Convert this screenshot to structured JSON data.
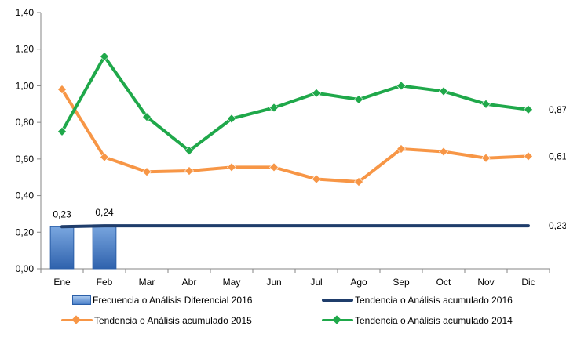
{
  "chart_data": {
    "type": "line",
    "categories": [
      "Ene",
      "Feb",
      "Mar",
      "Abr",
      "May",
      "Jun",
      "Jul",
      "Ago",
      "Sep",
      "Oct",
      "Nov",
      "Dic"
    ],
    "ylim": [
      0,
      1.4
    ],
    "yticks": [
      "0,00",
      "0,20",
      "0,40",
      "0,60",
      "0,80",
      "1,00",
      "1,20",
      "1,40"
    ],
    "title": "",
    "xlabel": "",
    "ylabel": "",
    "grid": false,
    "legend_position": "bottom",
    "series": [
      {
        "name": "Frecuencia o Análisis Diferencial 2016",
        "kind": "bar",
        "color": "#4a7fc8",
        "values": [
          0.23,
          0.24,
          null,
          null,
          null,
          null,
          null,
          null,
          null,
          null,
          null,
          null
        ],
        "labels": [
          "0,23",
          "0,24"
        ]
      },
      {
        "name": "Tendencia o Análisis acumulado 2016",
        "kind": "line",
        "color": "#1f3d6b",
        "marker": "none",
        "values": [
          0.23,
          0.235,
          0.235,
          0.235,
          0.235,
          0.235,
          0.235,
          0.235,
          0.235,
          0.235,
          0.235,
          0.235
        ],
        "end_label": "0,23"
      },
      {
        "name": "Tendencia o Análisis acumulado 2015",
        "kind": "line",
        "color": "#f79646",
        "marker": "diamond",
        "values": [
          0.98,
          0.61,
          0.53,
          0.535,
          0.555,
          0.555,
          0.49,
          0.475,
          0.655,
          0.64,
          0.605,
          0.615
        ],
        "end_label": "0,61"
      },
      {
        "name": "Tendencia o Análisis acumulado 2014",
        "kind": "line",
        "color": "#1fa84a",
        "marker": "diamond",
        "values": [
          0.75,
          1.16,
          0.83,
          0.645,
          0.82,
          0.88,
          0.96,
          0.925,
          1.0,
          0.97,
          0.9,
          0.87
        ],
        "end_label": "0,87"
      }
    ]
  }
}
